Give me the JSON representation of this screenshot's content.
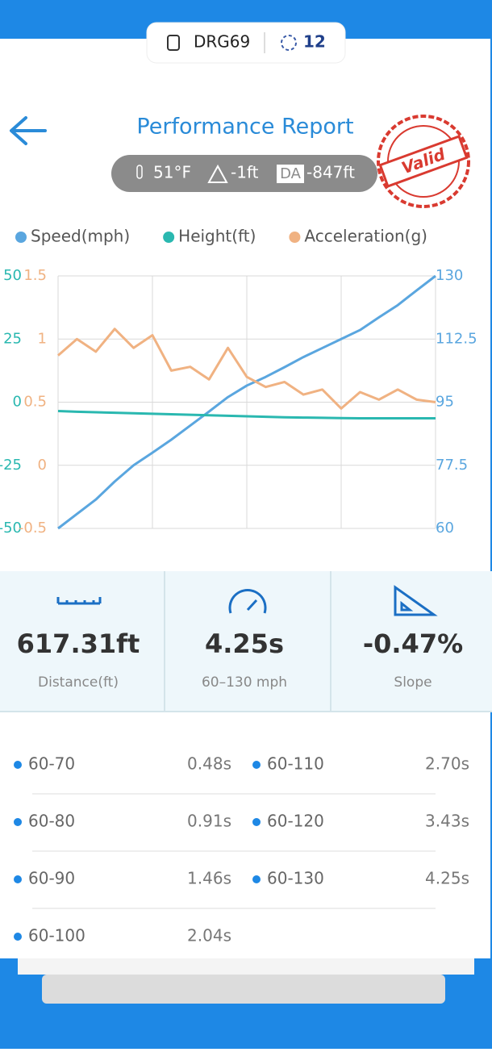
{
  "header": {
    "device": "DRG69",
    "count": "12"
  },
  "title": "Performance Report",
  "conditions": {
    "temperature": "51°F",
    "altitude": "-1ft",
    "da_label": "DA",
    "da_value": "-847ft"
  },
  "stamp": "Valid",
  "chart_data": {
    "type": "line",
    "series": [
      {
        "name": "Speed(mph)",
        "color": "#5aa6df",
        "axis": "y2",
        "values": [
          60,
          64,
          68,
          73,
          77.5,
          81,
          84.6,
          88.5,
          92.4,
          96.4,
          99.6,
          102,
          104.7,
          107.5,
          110,
          112.5,
          115,
          118.5,
          121.9,
          126,
          130
        ]
      },
      {
        "name": "Height(ft)",
        "color": "#2ab8b0",
        "axis": "y",
        "values": [
          -3.5,
          -3.8,
          -4.0,
          -4.2,
          -4.4,
          -4.6,
          -4.8,
          -5.0,
          -5.2,
          -5.4,
          -5.6,
          -5.8,
          -6.0,
          -6.1,
          -6.2,
          -6.3,
          -6.4,
          -6.4,
          -6.4,
          -6.4,
          -6.4
        ]
      },
      {
        "name": "Acceleration(g)",
        "color": "#f0b282",
        "axis": "y3",
        "values": [
          0.87,
          1.0,
          0.9,
          1.08,
          0.93,
          1.03,
          0.75,
          0.78,
          0.68,
          0.93,
          0.7,
          0.62,
          0.66,
          0.56,
          0.6,
          0.45,
          0.58,
          0.52,
          0.6,
          0.52,
          0.5
        ]
      }
    ],
    "ylim": [
      -50,
      50
    ],
    "yticks": [
      -50,
      -25,
      0,
      25,
      50
    ],
    "y3lim": [
      -0.5,
      1.5
    ],
    "y3ticks": [
      -0.5,
      0,
      0.5,
      1,
      1.5
    ],
    "y2lim": [
      60,
      130
    ],
    "y2ticks": [
      60,
      77.5,
      95,
      112.5,
      130
    ],
    "grid": true
  },
  "stats": [
    {
      "value": "617.31ft",
      "label": "Distance(ft)"
    },
    {
      "value": "4.25s",
      "label": "60–130 mph"
    },
    {
      "value": "-0.47%",
      "label": "Slope"
    }
  ],
  "splits": [
    {
      "range": "60-70",
      "time": "0.48s"
    },
    {
      "range": "60-110",
      "time": "2.70s"
    },
    {
      "range": "60-80",
      "time": "0.91s"
    },
    {
      "range": "60-120",
      "time": "3.43s"
    },
    {
      "range": "60-90",
      "time": "1.46s"
    },
    {
      "range": "60-130",
      "time": "4.25s"
    },
    {
      "range": "60-100",
      "time": "2.04s"
    }
  ]
}
